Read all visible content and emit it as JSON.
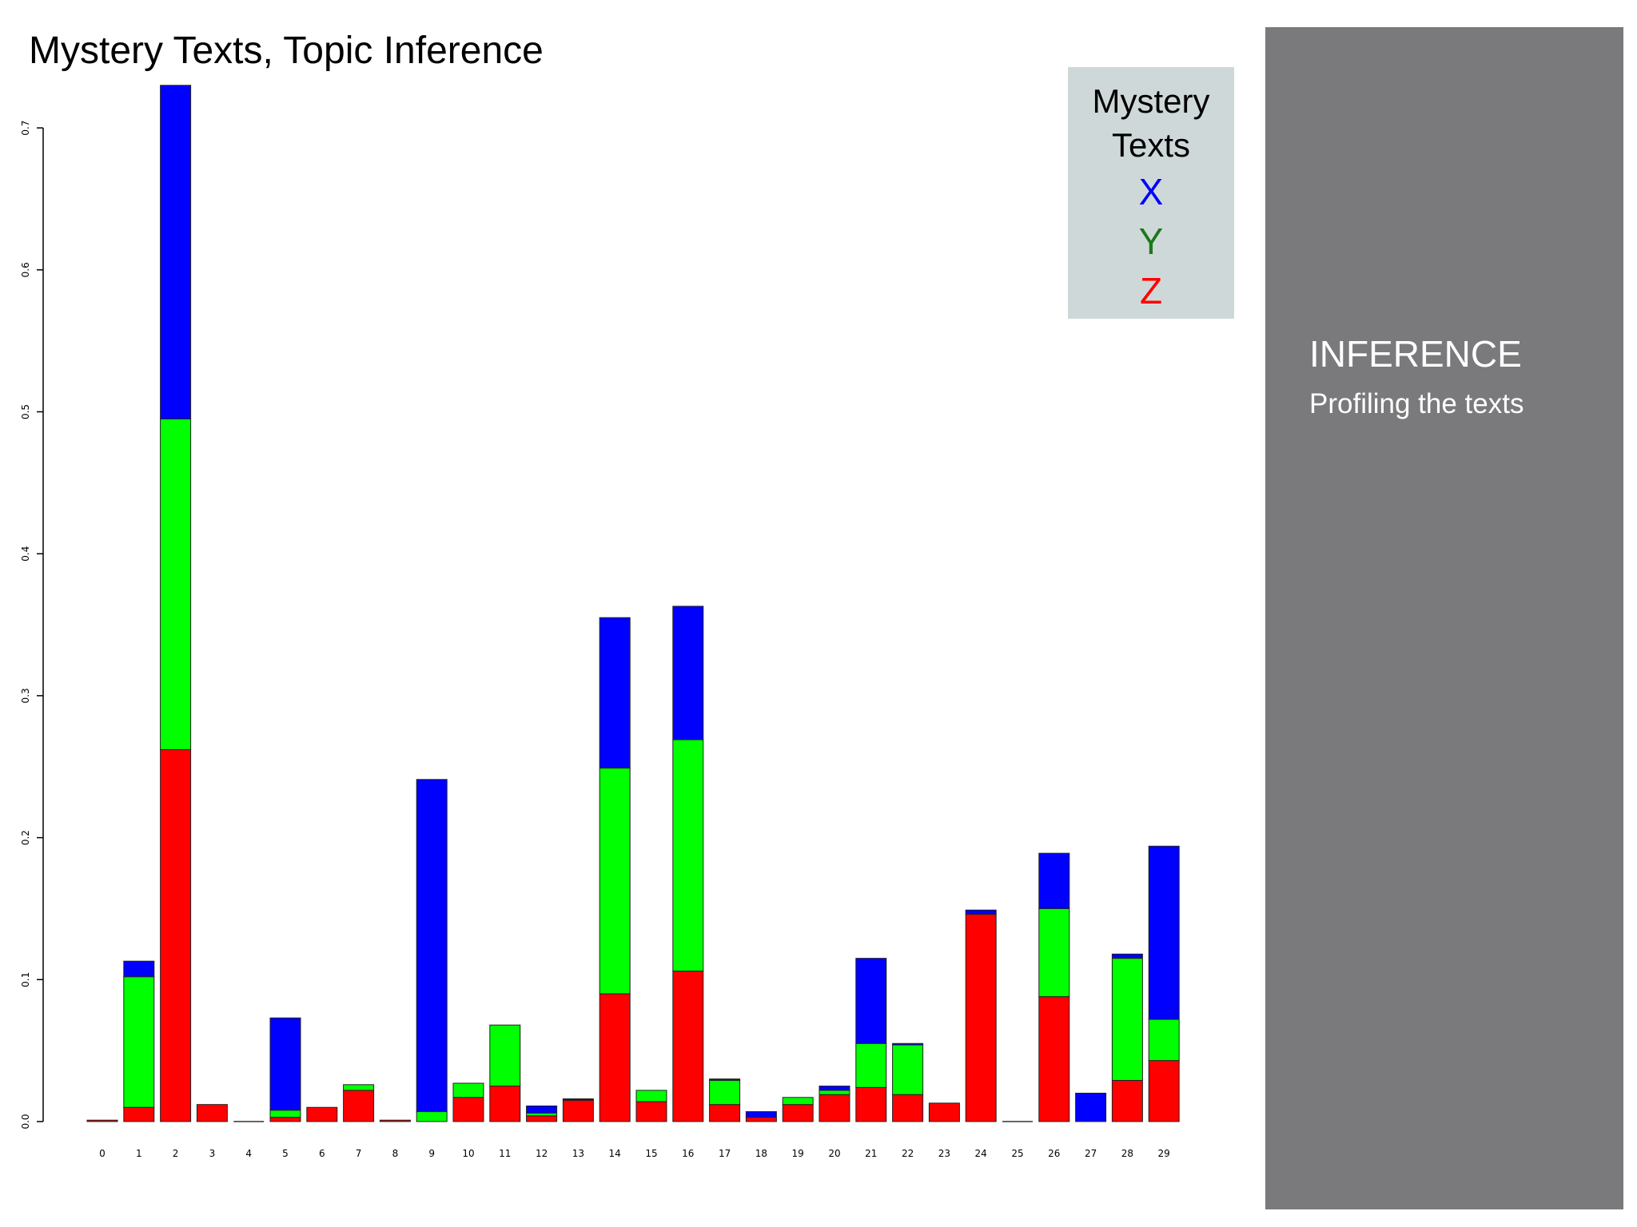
{
  "slide": {
    "title": "Mystery Texts, Topic Inference"
  },
  "legend": {
    "title_line1": "Mystery",
    "title_line2": "Texts",
    "items": [
      {
        "label": "X",
        "color": "#0000ff"
      },
      {
        "label": "Y",
        "color": "#1a7a1a"
      },
      {
        "label": "Z",
        "color": "#ff0000"
      }
    ]
  },
  "side_panel": {
    "heading": "INFERENCE",
    "subheading": "Profiling the texts"
  },
  "colors": {
    "series_z": "#ff0000",
    "series_y": "#00ff00",
    "series_x": "#0000ff",
    "side_panel_bg": "#7a7a7c",
    "legend_bg": "#cfd8d8"
  },
  "chart_data": {
    "type": "bar",
    "stacked": true,
    "title": "Mystery Texts, Topic Inference",
    "xlabel": "",
    "ylabel": "",
    "ylim": [
      0,
      0.73
    ],
    "yticks": [
      "0.0",
      "0.1",
      "0.2",
      "0.3",
      "0.4",
      "0.5",
      "0.6",
      "0.7"
    ],
    "ytick_values": [
      0,
      0.1,
      0.2,
      0.3,
      0.4,
      0.5,
      0.6,
      0.7
    ],
    "categories": [
      "0",
      "1",
      "2",
      "3",
      "4",
      "5",
      "6",
      "7",
      "8",
      "9",
      "10",
      "11",
      "12",
      "13",
      "14",
      "15",
      "16",
      "17",
      "18",
      "19",
      "20",
      "21",
      "22",
      "23",
      "24",
      "25",
      "26",
      "27",
      "28",
      "29"
    ],
    "series": [
      {
        "name": "Z",
        "color": "#ff0000",
        "values": [
          0.001,
          0.01,
          0.262,
          0.012,
          0.0,
          0.003,
          0.01,
          0.022,
          0.001,
          0.0,
          0.017,
          0.025,
          0.004,
          0.015,
          0.09,
          0.014,
          0.106,
          0.012,
          0.003,
          0.012,
          0.019,
          0.024,
          0.019,
          0.013,
          0.146,
          0.0,
          0.088,
          0.0,
          0.029,
          0.043
        ]
      },
      {
        "name": "Y",
        "color": "#00ff00",
        "values": [
          0.0,
          0.092,
          0.233,
          0.0,
          0.0,
          0.005,
          0.0,
          0.004,
          0.0,
          0.007,
          0.01,
          0.043,
          0.002,
          0.0,
          0.159,
          0.008,
          0.163,
          0.017,
          0.0,
          0.005,
          0.003,
          0.031,
          0.035,
          0.0,
          0.0,
          0.0,
          0.062,
          0.0,
          0.086,
          0.029
        ]
      },
      {
        "name": "X",
        "color": "#0000ff",
        "values": [
          0.0,
          0.011,
          0.236,
          0.0,
          0.0,
          0.065,
          0.0,
          0.0,
          0.0,
          0.234,
          0.0,
          0.0,
          0.005,
          0.001,
          0.106,
          0.0,
          0.094,
          0.001,
          0.004,
          0.0,
          0.003,
          0.06,
          0.001,
          0.0,
          0.003,
          0.0,
          0.039,
          0.02,
          0.003,
          0.122
        ]
      }
    ],
    "legend_position": "top-right",
    "grid": false
  }
}
